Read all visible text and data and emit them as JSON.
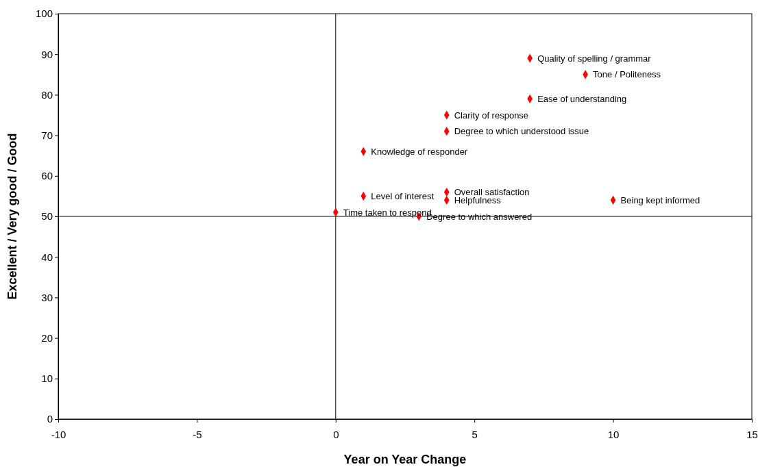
{
  "chart_data": {
    "type": "scatter",
    "xlabel": "Year on Year Change",
    "ylabel": "Excellent / Very good / Good",
    "series": [
      {
        "color": "#ff0000",
        "x": [
          7,
          9,
          7,
          4,
          4,
          1,
          1,
          4,
          4,
          10,
          0,
          3
        ],
        "values": [
          89,
          85,
          79,
          75,
          71,
          66,
          55,
          56,
          54,
          54,
          51,
          50
        ]
      }
    ],
    "annotations": [
      {
        "text": "Quality of spelling / grammar",
        "x": 7,
        "y": 89
      },
      {
        "text": "Tone / Politeness",
        "x": 9,
        "y": 85
      },
      {
        "text": "Ease of understanding",
        "x": 7,
        "y": 79
      },
      {
        "text": "Clarity of response",
        "x": 4,
        "y": 75
      },
      {
        "text": "Degree to which understood issue",
        "x": 4,
        "y": 71
      },
      {
        "text": "Knowledge of responder",
        "x": 1,
        "y": 66
      },
      {
        "text": "Level of interest",
        "x": 1,
        "y": 55
      },
      {
        "text": "Overall satisfaction",
        "x": 4,
        "y": 56
      },
      {
        "text": "Helpfulness",
        "x": 4,
        "y": 54
      },
      {
        "text": "Being kept informed",
        "x": 10,
        "y": 54
      },
      {
        "text": "Time taken to respond",
        "x": 0,
        "y": 51
      },
      {
        "text": "Degree to which answered",
        "x": 3,
        "y": 50
      }
    ],
    "ref_lines": [
      {
        "axis": "x",
        "value": 0,
        "color": "#000000"
      },
      {
        "axis": "y",
        "value": 50,
        "color": "#000000"
      }
    ],
    "xlim": [
      -10,
      15
    ],
    "xticks": [
      -10,
      -5,
      0,
      5,
      10,
      15
    ],
    "ylim": [
      0,
      100
    ],
    "yticks": [
      0,
      10,
      20,
      30,
      40,
      50,
      60,
      70,
      80,
      90,
      100
    ],
    "marker": "diamond"
  }
}
